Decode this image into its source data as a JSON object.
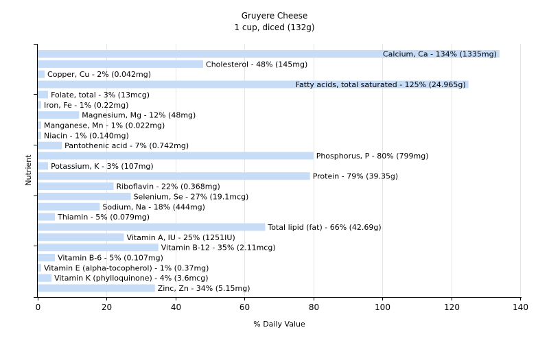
{
  "chart_data": {
    "type": "bar",
    "orientation": "horizontal",
    "title": "Gruyere Cheese",
    "subtitle": "1 cup, diced (132g)",
    "xlabel": "% Daily Value",
    "ylabel": "Nutrient",
    "xlim": [
      0,
      140
    ],
    "xticks": [
      0,
      20,
      40,
      60,
      80,
      100,
      120,
      140
    ],
    "grid": true,
    "bar_color": "#c6dcf7",
    "bars": [
      {
        "name": "Calcium, Ca",
        "value": 134,
        "label": "Calcium, Ca - 134% (1335mg)"
      },
      {
        "name": "Cholesterol",
        "value": 48,
        "label": "Cholesterol - 48% (145mg)"
      },
      {
        "name": "Copper, Cu",
        "value": 2,
        "label": "Copper, Cu - 2% (0.042mg)"
      },
      {
        "name": "Fatty acids, total saturated",
        "value": 125,
        "label": "Fatty acids, total saturated - 125% (24.965g)"
      },
      {
        "name": "Folate, total",
        "value": 3,
        "label": "Folate, total - 3% (13mcg)"
      },
      {
        "name": "Iron, Fe",
        "value": 1,
        "label": "Iron, Fe - 1% (0.22mg)"
      },
      {
        "name": "Magnesium, Mg",
        "value": 12,
        "label": "Magnesium, Mg - 12% (48mg)"
      },
      {
        "name": "Manganese, Mn",
        "value": 1,
        "label": "Manganese, Mn - 1% (0.022mg)"
      },
      {
        "name": "Niacin",
        "value": 1,
        "label": "Niacin - 1% (0.140mg)"
      },
      {
        "name": "Pantothenic acid",
        "value": 7,
        "label": "Pantothenic acid - 7% (0.742mg)"
      },
      {
        "name": "Phosphorus, P",
        "value": 80,
        "label": "Phosphorus, P - 80% (799mg)"
      },
      {
        "name": "Potassium, K",
        "value": 3,
        "label": "Potassium, K - 3% (107mg)"
      },
      {
        "name": "Protein",
        "value": 79,
        "label": "Protein - 79% (39.35g)"
      },
      {
        "name": "Riboflavin",
        "value": 22,
        "label": "Riboflavin - 22% (0.368mg)"
      },
      {
        "name": "Selenium, Se",
        "value": 27,
        "label": "Selenium, Se - 27% (19.1mcg)"
      },
      {
        "name": "Sodium, Na",
        "value": 18,
        "label": "Sodium, Na - 18% (444mg)"
      },
      {
        "name": "Thiamin",
        "value": 5,
        "label": "Thiamin - 5% (0.079mg)"
      },
      {
        "name": "Total lipid (fat)",
        "value": 66,
        "label": "Total lipid (fat) - 66% (42.69g)"
      },
      {
        "name": "Vitamin A, IU",
        "value": 25,
        "label": "Vitamin A, IU - 25% (1251IU)"
      },
      {
        "name": "Vitamin B-12",
        "value": 35,
        "label": "Vitamin B-12 - 35% (2.11mcg)"
      },
      {
        "name": "Vitamin B-6",
        "value": 5,
        "label": "Vitamin B-6 - 5% (0.107mg)"
      },
      {
        "name": "Vitamin E (alpha-tocopherol)",
        "value": 1,
        "label": "Vitamin E (alpha-tocopherol) - 1% (0.37mg)"
      },
      {
        "name": "Vitamin K (phylloquinone)",
        "value": 4,
        "label": "Vitamin K (phylloquinone) - 4% (3.6mcg)"
      },
      {
        "name": "Zinc, Zn",
        "value": 34,
        "label": "Zinc, Zn - 34% (5.15mg)"
      }
    ]
  }
}
